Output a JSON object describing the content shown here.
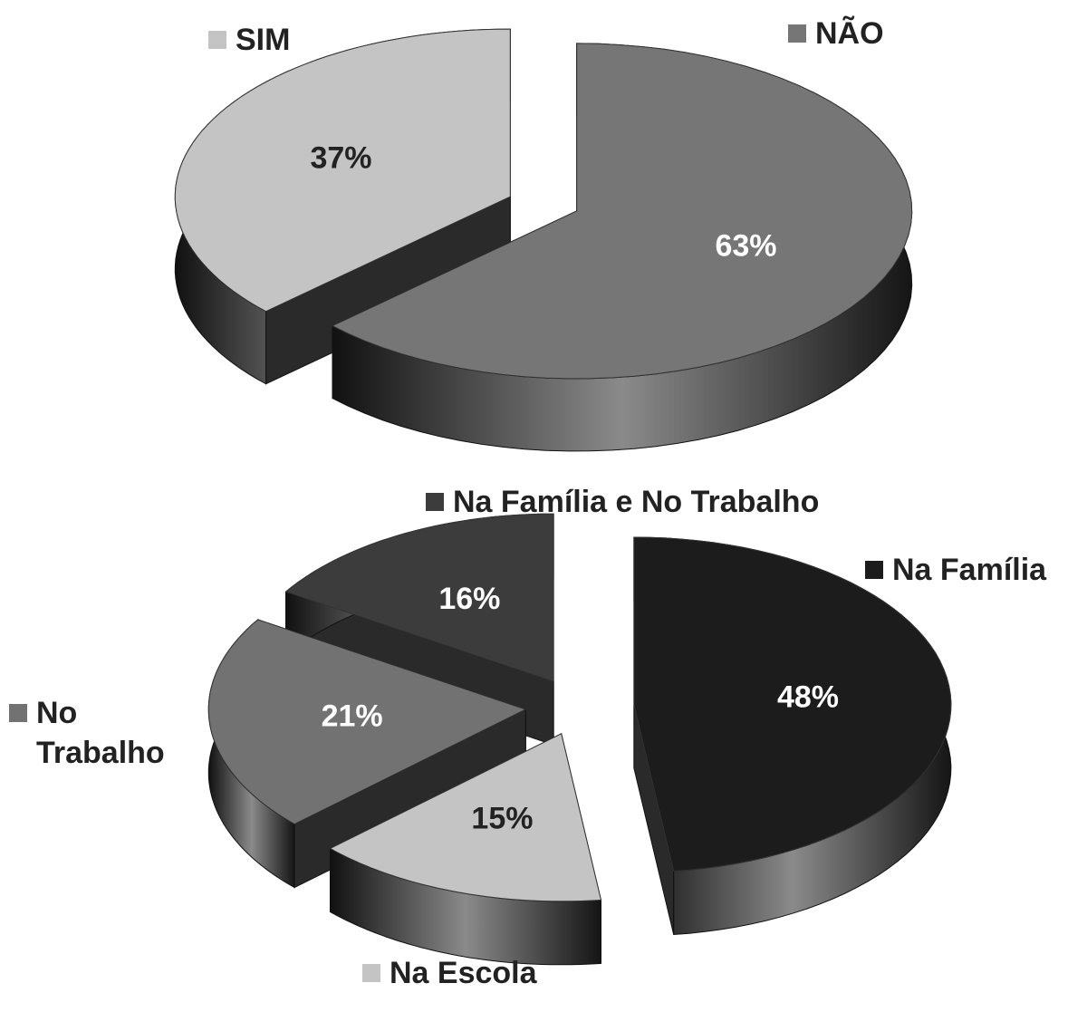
{
  "chart_data": [
    {
      "type": "pie",
      "categories": [
        "SIM",
        "NÃO"
      ],
      "values": [
        37,
        63
      ],
      "value_labels": [
        "37%",
        "63%"
      ],
      "colors": [
        "#c4c4c4",
        "#767676"
      ]
    },
    {
      "type": "pie",
      "categories": [
        "Na Família e No Trabalho",
        "No Trabalho",
        "Na Escola",
        "Na Família"
      ],
      "values": [
        16,
        21,
        15,
        48
      ],
      "value_labels": [
        "16%",
        "21%",
        "15%",
        "48%"
      ],
      "colors": [
        "#3c3c3c",
        "#727272",
        "#c4c4c4",
        "#1c1c1c"
      ]
    }
  ]
}
